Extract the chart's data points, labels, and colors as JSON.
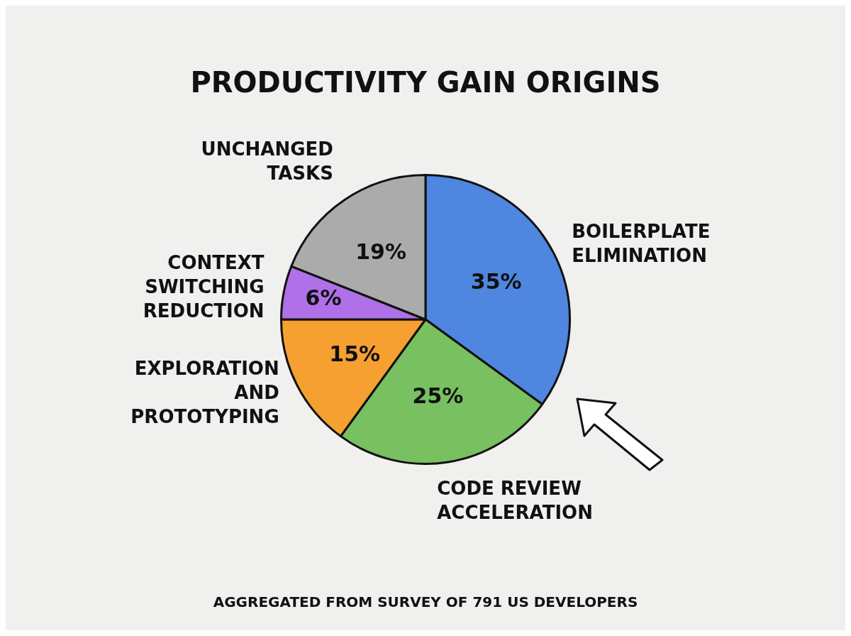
{
  "chart_data": {
    "type": "pie",
    "title": "PRODUCTIVITY GAIN ORIGINS",
    "categories": [
      "BOILERPLATE ELIMINATION",
      "CODE REVIEW ACCELERATION",
      "EXPLORATION AND PROTOTYPING",
      "CONTEXT SWITCHING REDUCTION",
      "UNCHANGED TASKS"
    ],
    "values": [
      35,
      25,
      15,
      6,
      19
    ],
    "value_labels": [
      "35%",
      "25%",
      "15%",
      "6%",
      "19%"
    ],
    "colors": [
      "#4f86e0",
      "#78c060",
      "#f5a030",
      "#b070e8",
      "#ababab"
    ],
    "annotations": [
      "AGGREGATED FROM SURVEY OF 791 US DEVELOPERS"
    ]
  }
}
